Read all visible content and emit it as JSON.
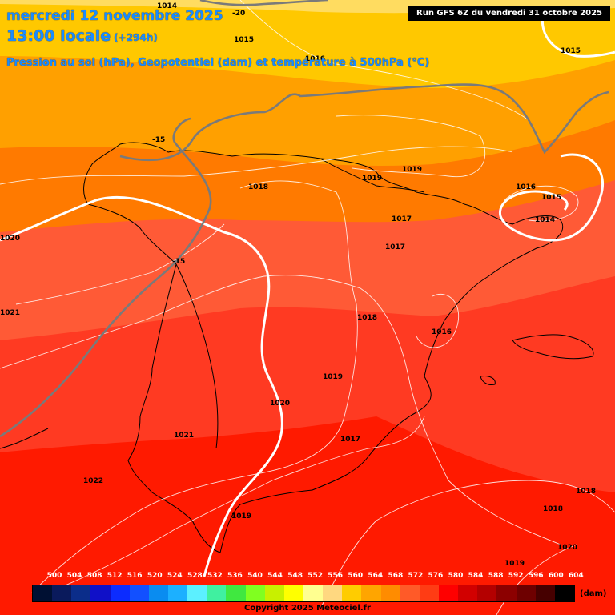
{
  "header": {
    "date": "mercredi 12 novembre 2025",
    "time": "13:00 locale",
    "lead": "(+294h)",
    "description": "Pression au sol (hPa), Geopotentiel (dam) et température à 500hPa (°C)",
    "run": "Run GFS 6Z du vendredi 31 octobre 2025"
  },
  "pressure_labels": [
    "1014",
    "1015",
    "1015",
    "1016",
    "1020",
    "1021",
    "1018",
    "1019",
    "1019",
    "1016",
    "1015",
    "1014",
    "1017",
    "1017",
    "1018",
    "1016",
    "1019",
    "1020",
    "1021",
    "1017",
    "1022",
    "1019",
    "1018",
    "1018",
    "1019",
    "1020"
  ],
  "temperature_labels": [
    "-20",
    "-15",
    "-15"
  ],
  "legend": {
    "ticks": [
      "500",
      "504",
      "508",
      "512",
      "516",
      "520",
      "524",
      "528",
      "532",
      "536",
      "540",
      "544",
      "548",
      "552",
      "556",
      "560",
      "564",
      "568",
      "572",
      "576",
      "580",
      "584",
      "588",
      "592",
      "596",
      "600",
      "604"
    ],
    "colors": [
      "#001033",
      "#0a1a5c",
      "#0b2d8a",
      "#1010c8",
      "#0c2cff",
      "#1250ff",
      "#0a8cf0",
      "#1cb0ff",
      "#5cf0ff",
      "#40f0a0",
      "#40e840",
      "#80ff20",
      "#c8f000",
      "#ffff00",
      "#ffff90",
      "#ffd880",
      "#ffcc00",
      "#ffa500",
      "#ff8c00",
      "#ff5a28",
      "#ff3c14",
      "#ff0000",
      "#d20000",
      "#b40000",
      "#8c0000",
      "#6e0000",
      "#460000",
      "#000000"
    ],
    "unit": "(dam)"
  },
  "copyright": "Copyright 2025 Meteociel.fr"
}
